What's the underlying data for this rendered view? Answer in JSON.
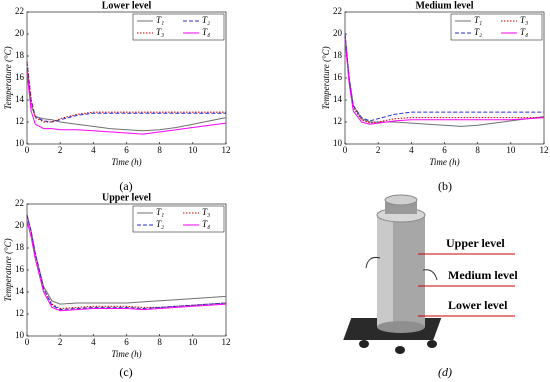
{
  "chart_data": [
    {
      "type": "line",
      "title": "Lower level",
      "xlabel": "Time (h)",
      "ylabel": "Temperature (°C)",
      "x": [
        0,
        0.25,
        0.5,
        1,
        1.5,
        2,
        3,
        4,
        5,
        6,
        7,
        8,
        9,
        10,
        11,
        12
      ],
      "xlim": [
        0,
        12
      ],
      "ylim": [
        10,
        22
      ],
      "xticks": [
        0,
        2,
        4,
        6,
        8,
        10,
        12
      ],
      "yticks": [
        10,
        12,
        14,
        16,
        18,
        20,
        22
      ],
      "series": [
        {
          "name": "T₁",
          "color": "#707070",
          "line_style": "solid",
          "values": [
            17,
            13.5,
            12.5,
            12.3,
            12.2,
            12.0,
            11.8,
            11.6,
            11.4,
            11.3,
            11.2,
            11.3,
            11.5,
            11.8,
            12.1,
            12.4
          ]
        },
        {
          "name": "T₂",
          "color": "#2b2bd0",
          "line_style": "dashed",
          "values": [
            17.5,
            14,
            12.5,
            12.1,
            12.0,
            12.2,
            12.6,
            12.8,
            12.8,
            12.8,
            12.8,
            12.8,
            12.8,
            12.8,
            12.8,
            12.8
          ]
        },
        {
          "name": "T₃",
          "color": "#d00000",
          "line_style": "dotted",
          "values": [
            17.5,
            14,
            12.4,
            12.0,
            12.0,
            12.3,
            12.7,
            12.9,
            12.9,
            12.9,
            12.9,
            12.9,
            12.9,
            12.9,
            12.9,
            12.9
          ]
        },
        {
          "name": "T₄",
          "color": "#ff00ff",
          "line_style": "solid",
          "values": [
            16.5,
            13,
            11.8,
            11.4,
            11.4,
            11.3,
            11.3,
            11.2,
            11.1,
            11.0,
            10.9,
            11.1,
            11.3,
            11.5,
            11.7,
            11.9
          ]
        }
      ]
    },
    {
      "type": "line",
      "title": "Medium level",
      "xlabel": "Time (h)",
      "ylabel": "Temperature (°C)",
      "x": [
        0,
        0.25,
        0.5,
        1,
        1.5,
        2,
        3,
        4,
        5,
        6,
        7,
        8,
        9,
        10,
        11,
        12
      ],
      "xlim": [
        0,
        12
      ],
      "ylim": [
        10,
        22
      ],
      "xticks": [
        0,
        2,
        4,
        6,
        8,
        10,
        12
      ],
      "yticks": [
        10,
        12,
        14,
        16,
        18,
        20,
        22
      ],
      "series": [
        {
          "name": "T₁",
          "color": "#707070",
          "line_style": "solid",
          "values": [
            20,
            16,
            13.5,
            12.3,
            12.0,
            12.0,
            12.0,
            11.9,
            11.8,
            11.7,
            11.6,
            11.7,
            11.9,
            12.1,
            12.3,
            12.5
          ]
        },
        {
          "name": "T₃",
          "color": "#d00000",
          "line_style": "dotted",
          "values": [
            20,
            16,
            13.3,
            12.2,
            11.9,
            12.0,
            12.3,
            12.4,
            12.4,
            12.4,
            12.4,
            12.4,
            12.4,
            12.4,
            12.4,
            12.4
          ]
        },
        {
          "name": "T₂",
          "color": "#2b2bd0",
          "line_style": "dashed",
          "values": [
            20,
            16,
            13.5,
            12.4,
            12.1,
            12.3,
            12.7,
            12.9,
            12.9,
            12.9,
            12.9,
            12.9,
            12.9,
            12.9,
            12.9,
            12.9
          ]
        },
        {
          "name": "T₄",
          "color": "#ff00ff",
          "line_style": "solid",
          "values": [
            19.5,
            15.5,
            13,
            12.0,
            11.8,
            11.9,
            12.1,
            12.2,
            12.2,
            12.2,
            12.2,
            12.2,
            12.2,
            12.2,
            12.3,
            12.4
          ]
        }
      ]
    },
    {
      "type": "line",
      "title": "Upper level",
      "xlabel": "Time (h)",
      "ylabel": "Temperature (°C)",
      "x": [
        0,
        0.25,
        0.5,
        1,
        1.5,
        2,
        3,
        4,
        5,
        6,
        7,
        8,
        9,
        10,
        11,
        12
      ],
      "xlim": [
        0,
        12
      ],
      "ylim": [
        10,
        22
      ],
      "xticks": [
        0,
        2,
        4,
        6,
        8,
        10,
        12
      ],
      "yticks": [
        10,
        12,
        14,
        16,
        18,
        20,
        22
      ],
      "series": [
        {
          "name": "T₁",
          "color": "#707070",
          "line_style": "solid",
          "values": [
            21,
            19.5,
            17.5,
            14.5,
            13.2,
            12.9,
            13.0,
            13.0,
            13.0,
            13.0,
            13.1,
            13.2,
            13.3,
            13.4,
            13.5,
            13.6
          ]
        },
        {
          "name": "T₃",
          "color": "#d00000",
          "line_style": "dotted",
          "values": [
            21,
            19.5,
            17.5,
            14.3,
            12.9,
            12.5,
            12.6,
            12.7,
            12.7,
            12.7,
            12.6,
            12.6,
            12.7,
            12.8,
            12.9,
            13.0
          ]
        },
        {
          "name": "T₂",
          "color": "#2b2bd0",
          "line_style": "dashed",
          "values": [
            21,
            19.5,
            17.5,
            14.3,
            12.8,
            12.4,
            12.5,
            12.6,
            12.6,
            12.6,
            12.5,
            12.6,
            12.7,
            12.8,
            12.9,
            13.0
          ]
        },
        {
          "name": "T₄",
          "color": "#ff00ff",
          "line_style": "solid",
          "values": [
            20.5,
            19,
            17,
            14,
            12.6,
            12.3,
            12.4,
            12.5,
            12.5,
            12.5,
            12.4,
            12.5,
            12.6,
            12.7,
            12.8,
            12.9
          ]
        }
      ]
    }
  ],
  "panel_labels": [
    "(a)",
    "(b)",
    "(c)",
    "(d)"
  ],
  "illustration_labels": [
    "Upper level",
    "Medium level",
    "Lower level"
  ]
}
